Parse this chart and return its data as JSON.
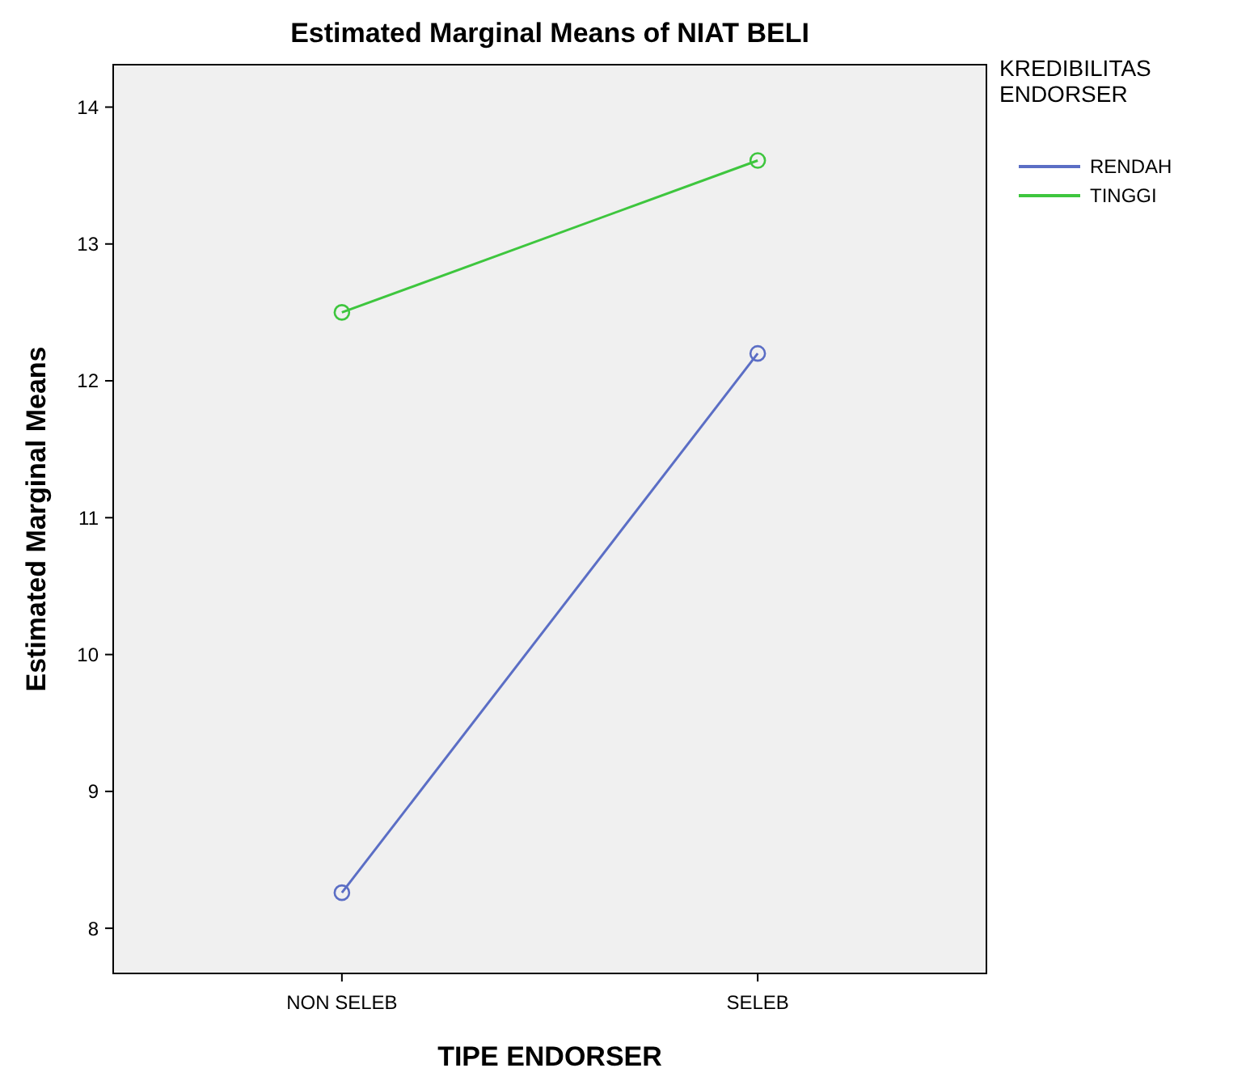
{
  "chart_data": {
    "type": "line",
    "title": "Estimated Marginal Means of NIAT BELI",
    "xlabel": "TIPE ENDORSER",
    "ylabel": "Estimated Marginal Means",
    "legend_title": "KREDIBILITAS ENDORSER",
    "categories": [
      "NON SELEB",
      "SELEB"
    ],
    "series": [
      {
        "name": "RENDAH",
        "color": "#5b6ec5",
        "values": [
          8.26,
          12.2
        ]
      },
      {
        "name": "TINGGI",
        "color": "#3ec63e",
        "values": [
          12.5,
          13.61
        ]
      }
    ],
    "ylim": [
      7.67,
      14.31
    ],
    "yticks": [
      8,
      9,
      10,
      11,
      12,
      13,
      14
    ],
    "grid": false,
    "legend": "top right",
    "marker": "circle",
    "line_style": "solid"
  }
}
